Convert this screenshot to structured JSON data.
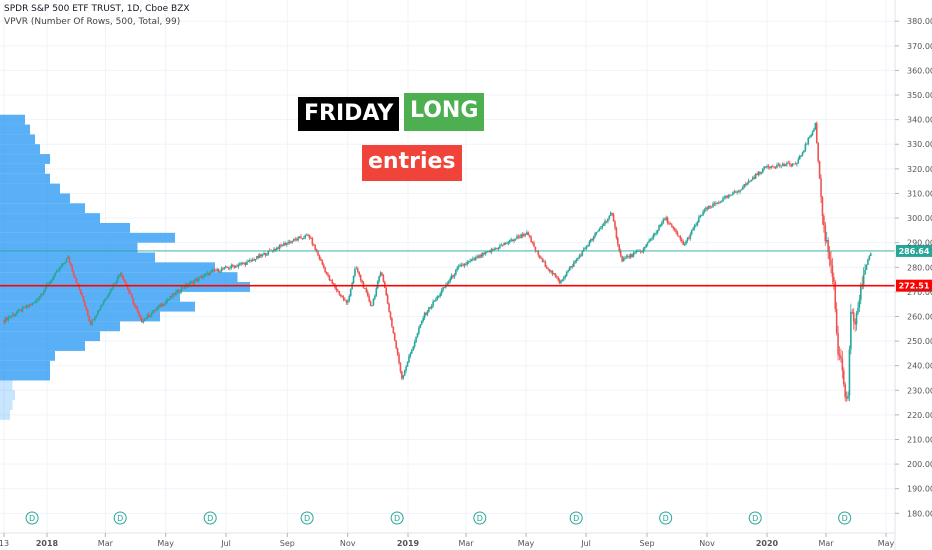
{
  "legend": {
    "symbol_line": "SPDR S&P 500 ETF TRUST, 1D, Cboe BZX",
    "indicator_line": "VPVR (Number Of Rows, 500, Total, 99)"
  },
  "annotations": {
    "friday": "FRIDAY",
    "long": "LONG",
    "entries": "entries"
  },
  "colors": {
    "up": "#26a69a",
    "down": "#ef5350",
    "volume_profile": "#2196f3",
    "level_line": "#ff0000",
    "last_price": "#26a69a"
  },
  "chart_data": {
    "type": "line",
    "ylim": [
      172,
      387
    ],
    "y_ticks": [
      180,
      190,
      200,
      210,
      220,
      230,
      240,
      250,
      260,
      270,
      280,
      290,
      300,
      310,
      320,
      330,
      340,
      350,
      360,
      370,
      380
    ],
    "x_tick_labels": [
      "13",
      "2018",
      "Mar",
      "May",
      "Jul",
      "Sep",
      "Nov",
      "2019",
      "Mar",
      "May",
      "Jul",
      "Sep",
      "Nov",
      "2020",
      "Mar",
      "May"
    ],
    "x_dates": [
      "2017-11-13",
      "2017-12-15",
      "2018-01-17",
      "2018-02-05",
      "2018-02-09",
      "2018-03-12",
      "2018-04-02",
      "2018-05-15",
      "2018-06-12",
      "2018-07-20",
      "2018-08-29",
      "2018-09-20",
      "2018-10-11",
      "2018-10-29",
      "2018-11-07",
      "2018-11-23",
      "2018-12-03",
      "2018-12-24",
      "2019-01-15",
      "2019-02-20",
      "2019-04-30",
      "2019-05-15",
      "2019-06-03",
      "2019-07-26",
      "2019-08-05",
      "2019-08-27",
      "2019-09-19",
      "2019-10-08",
      "2019-10-28",
      "2019-12-02",
      "2019-12-31",
      "2020-01-31",
      "2020-02-19",
      "2020-02-27",
      "2020-03-09",
      "2020-03-12",
      "2020-03-16",
      "2020-03-23",
      "2020-03-26",
      "2020-03-31",
      "2020-04-09",
      "2020-04-16"
    ],
    "close": [
      258.5,
      266,
      284,
      263,
      257,
      278,
      258,
      272,
      278,
      282,
      290,
      293,
      275,
      265,
      280,
      264,
      279,
      235,
      260,
      280,
      294,
      283,
      274,
      302,
      283,
      287,
      300,
      289,
      303,
      311,
      321,
      322,
      338,
      297,
      275,
      248,
      240,
      222,
      260,
      258,
      279,
      286.6
    ],
    "volume_profile": {
      "price_levels": [
        218,
        222,
        226,
        230,
        234,
        238,
        242,
        246,
        250,
        254,
        258,
        262,
        266,
        270,
        274,
        278,
        282,
        286,
        290,
        294,
        298,
        302,
        306,
        310,
        314,
        318,
        322,
        326,
        330,
        334,
        338
      ],
      "relative_volume": [
        0.04,
        0.05,
        0.06,
        0.05,
        0.2,
        0.2,
        0.22,
        0.34,
        0.4,
        0.48,
        0.64,
        0.78,
        0.72,
        1.0,
        0.95,
        0.86,
        0.62,
        0.55,
        0.7,
        0.52,
        0.4,
        0.34,
        0.28,
        0.24,
        0.2,
        0.18,
        0.2,
        0.16,
        0.14,
        0.12,
        0.1
      ]
    },
    "horizontal_lines": [
      {
        "value": 272.51,
        "label": "272.51",
        "color": "#ff0000"
      },
      {
        "value": 286.64,
        "label": "286.64",
        "color": "#26a69a"
      }
    ],
    "dividend_marker_dates": [
      "2017-12-15",
      "2018-03-16",
      "2018-06-15",
      "2018-09-21",
      "2018-12-21",
      "2019-03-15",
      "2019-06-21",
      "2019-09-20",
      "2019-12-20",
      "2020-03-20"
    ],
    "grid": true
  }
}
